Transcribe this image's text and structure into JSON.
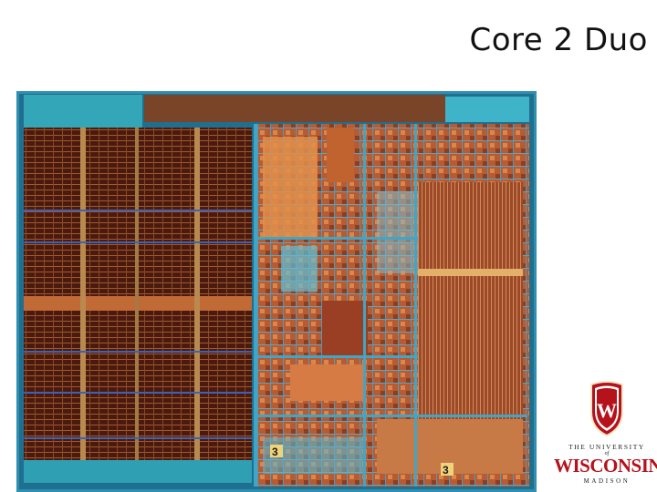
{
  "slide": {
    "title": "Core 2 Duo"
  },
  "die_photo": {
    "markings": [
      "3",
      "3"
    ]
  },
  "logo": {
    "line1": "THE UNIVERSITY",
    "of": "of",
    "line2": "WISCONSIN",
    "line3": "MADISON",
    "crest_letter": "W",
    "brand_color": "#b5121b"
  }
}
